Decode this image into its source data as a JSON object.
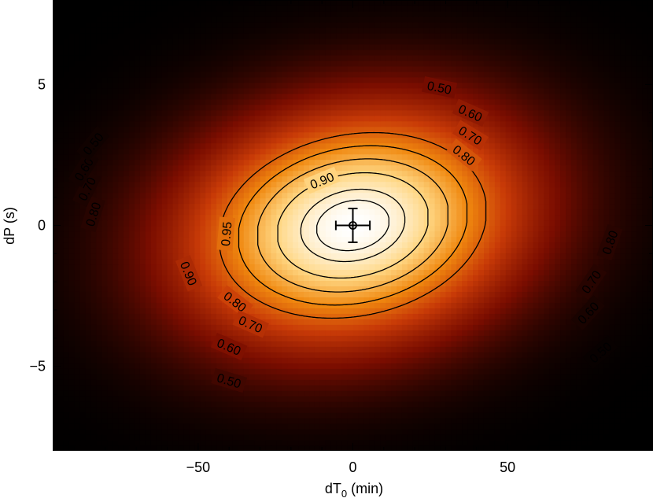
{
  "chart_data": {
    "type": "heatmap",
    "title": "",
    "xlabel": "dT",
    "xlabel_subscript": "0",
    "xlabel_unit": " (min)",
    "ylabel": "dP (s)",
    "xlim": [
      -97,
      97
    ],
    "ylim": [
      -8,
      8
    ],
    "x_ticks": [
      -50,
      0,
      50
    ],
    "x_tick_labels": [
      "−50",
      "0",
      "50"
    ],
    "y_ticks": [
      -5,
      0,
      5
    ],
    "y_tick_labels": [
      "−5",
      "0",
      "5"
    ],
    "colormap": [
      "#000000",
      "#7a0d00",
      "#c83a07",
      "#f0880f",
      "#ffd682",
      "#ffffff"
    ],
    "surface": {
      "center": [
        0,
        0
      ],
      "a": 0.00038,
      "b": -0.00156,
      "c": 0.0655
    },
    "contours": [
      {
        "level": 0.95,
        "label": "0.95",
        "label_positions": [
          [
            -41,
            -0.3
          ]
        ]
      },
      {
        "level": 0.9,
        "label": "0.90",
        "label_positions": [
          [
            -10,
            1.6
          ],
          [
            -53,
            -1.7
          ]
        ]
      },
      {
        "level": 0.8,
        "label": "0.80",
        "label_positions": [
          [
            -84,
            0.4
          ],
          [
            36,
            2.5
          ],
          [
            -38,
            -2.7
          ],
          [
            83,
            -0.6
          ]
        ]
      },
      {
        "level": 0.7,
        "label": "0.70",
        "label_positions": [
          [
            -86,
            1.3
          ],
          [
            38,
            3.2
          ],
          [
            -33,
            -3.5
          ],
          [
            77,
            -2.0
          ]
        ]
      },
      {
        "level": 0.6,
        "label": "0.60",
        "label_positions": [
          [
            -87,
            2.0
          ],
          [
            38,
            4.0
          ],
          [
            -40,
            -4.3
          ],
          [
            76,
            -3.1
          ]
        ]
      },
      {
        "level": 0.5,
        "label": "0.50",
        "label_positions": [
          [
            -84,
            2.9
          ],
          [
            28,
            4.9
          ],
          [
            -40,
            -5.5
          ],
          [
            80,
            -4.5
          ]
        ]
      }
    ],
    "points": [
      {
        "x": 0,
        "y": 0,
        "x_error": 5.5,
        "y_error": 0.6
      }
    ]
  }
}
